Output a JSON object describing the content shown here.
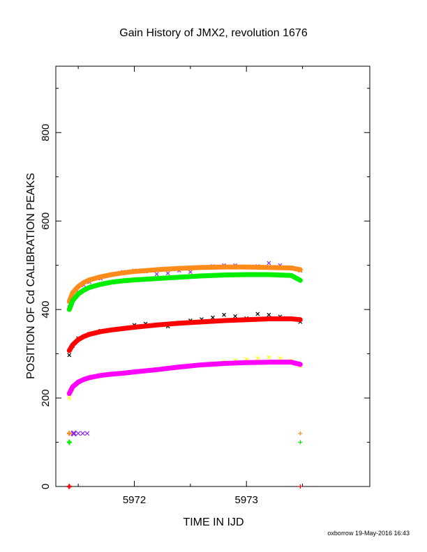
{
  "chart_data": {
    "type": "scatter",
    "title": "Gain History of JMX2, revolution 1676",
    "xlabel": "TIME IN IJD",
    "ylabel": "POSITION OF Cd CALIBRATION PEAKS",
    "xlim": [
      5971.3,
      5974.1
    ],
    "ylim": [
      0,
      950
    ],
    "xticks": [
      5972,
      5973
    ],
    "yticks": [
      0,
      200,
      400,
      600,
      800
    ],
    "grid": false,
    "legend": "none",
    "series": [
      {
        "color": "#8a2be2",
        "marker": "x",
        "role": "scatter",
        "x": [
          5971.42,
          5971.45,
          5971.5,
          5971.55,
          5971.6,
          5971.7,
          5971.8,
          5971.9,
          5972.0,
          5972.1,
          5972.2,
          5972.3,
          5972.4,
          5972.5,
          5972.6,
          5972.7,
          5972.8,
          5972.9,
          5973.0,
          5973.1,
          5973.2,
          5973.3,
          5973.4,
          5973.48
        ],
        "y": [
          405,
          425,
          440,
          455,
          462,
          470,
          478,
          485,
          488,
          486,
          480,
          482,
          488,
          485,
          495,
          498,
          500,
          500,
          495,
          498,
          505,
          500,
          495,
          488
        ]
      },
      {
        "color": "#ff8c1a",
        "marker": "+",
        "role": "fit",
        "x": [
          5971.42,
          5971.45,
          5971.5,
          5971.55,
          5971.6,
          5971.7,
          5971.8,
          5971.9,
          5972.0,
          5972.2,
          5972.4,
          5972.6,
          5972.8,
          5973.0,
          5973.2,
          5973.4,
          5973.48
        ],
        "y": [
          418,
          438,
          452,
          461,
          467,
          474,
          479,
          483,
          486,
          490,
          493,
          495,
          496,
          496,
          495,
          494,
          490
        ]
      },
      {
        "color": "#00ee00",
        "marker": "+",
        "role": "fit",
        "x": [
          5971.42,
          5971.45,
          5971.5,
          5971.55,
          5971.6,
          5971.7,
          5971.8,
          5971.9,
          5972.0,
          5972.2,
          5972.4,
          5972.6,
          5972.8,
          5973.0,
          5973.2,
          5973.4,
          5973.48
        ],
        "y": [
          400,
          420,
          435,
          444,
          450,
          457,
          462,
          465,
          467,
          470,
          473,
          476,
          478,
          479,
          479,
          477,
          466
        ]
      },
      {
        "color": "#000000",
        "marker": "x",
        "role": "scatter",
        "x": [
          5971.42,
          5971.45,
          5971.5,
          5971.6,
          5971.7,
          5971.8,
          5971.9,
          5972.0,
          5972.1,
          5972.2,
          5972.3,
          5972.4,
          5972.5,
          5972.6,
          5972.7,
          5972.8,
          5972.9,
          5973.0,
          5973.1,
          5973.2,
          5973.3,
          5973.4,
          5973.48
        ],
        "y": [
          297,
          318,
          335,
          345,
          352,
          355,
          358,
          365,
          368,
          365,
          362,
          370,
          375,
          378,
          382,
          388,
          385,
          380,
          390,
          388,
          384,
          378,
          372
        ]
      },
      {
        "color": "#ff0000",
        "marker": "+",
        "role": "fit",
        "x": [
          5971.42,
          5971.45,
          5971.5,
          5971.55,
          5971.6,
          5971.7,
          5971.8,
          5971.9,
          5972.0,
          5972.2,
          5972.4,
          5972.6,
          5972.8,
          5973.0,
          5973.2,
          5973.4,
          5973.48
        ],
        "y": [
          307,
          320,
          332,
          339,
          344,
          350,
          354,
          357,
          360,
          365,
          369,
          372,
          375,
          377,
          379,
          379,
          377
        ]
      },
      {
        "color": "#ffff00",
        "marker": "x",
        "role": "scatter",
        "x": [
          5971.42,
          5971.45,
          5971.5,
          5971.6,
          5971.7,
          5971.8,
          5971.9,
          5972.0,
          5972.1,
          5972.2,
          5972.3,
          5972.4,
          5972.5,
          5972.6,
          5972.7,
          5972.8,
          5972.9,
          5973.0,
          5973.1,
          5973.2,
          5973.3,
          5973.4,
          5973.48
        ],
        "y": [
          200,
          220,
          235,
          245,
          250,
          255,
          258,
          260,
          262,
          265,
          268,
          270,
          272,
          275,
          278,
          282,
          285,
          288,
          290,
          292,
          290,
          285,
          272
        ]
      },
      {
        "color": "#ff00ff",
        "marker": "+",
        "role": "fit",
        "x": [
          5971.42,
          5971.45,
          5971.5,
          5971.55,
          5971.6,
          5971.7,
          5971.8,
          5971.9,
          5972.0,
          5972.2,
          5972.4,
          5972.6,
          5972.8,
          5973.0,
          5973.2,
          5973.4,
          5973.48
        ],
        "y": [
          210,
          225,
          236,
          242,
          246,
          251,
          254,
          256,
          259,
          264,
          270,
          275,
          278,
          280,
          281,
          281,
          276
        ]
      }
    ],
    "low_markers": [
      {
        "color": "#ff8c1a",
        "marker": "+",
        "x": [
          5971.42,
          5973.48
        ],
        "y": [
          120,
          120
        ]
      },
      {
        "color": "#8a2be2",
        "marker": "x",
        "x": [
          5971.46,
          5971.5,
          5971.54,
          5971.58
        ],
        "y": [
          120,
          120,
          120,
          120
        ]
      },
      {
        "color": "#00ee00",
        "marker": "+",
        "x": [
          5971.42,
          5973.48
        ],
        "y": [
          100,
          100
        ]
      },
      {
        "color": "#ff0000",
        "marker": "+",
        "x": [
          5971.42,
          5973.48
        ],
        "y": [
          0,
          0
        ]
      }
    ],
    "footer": "oxborrow 19-May-2016 16:43"
  }
}
